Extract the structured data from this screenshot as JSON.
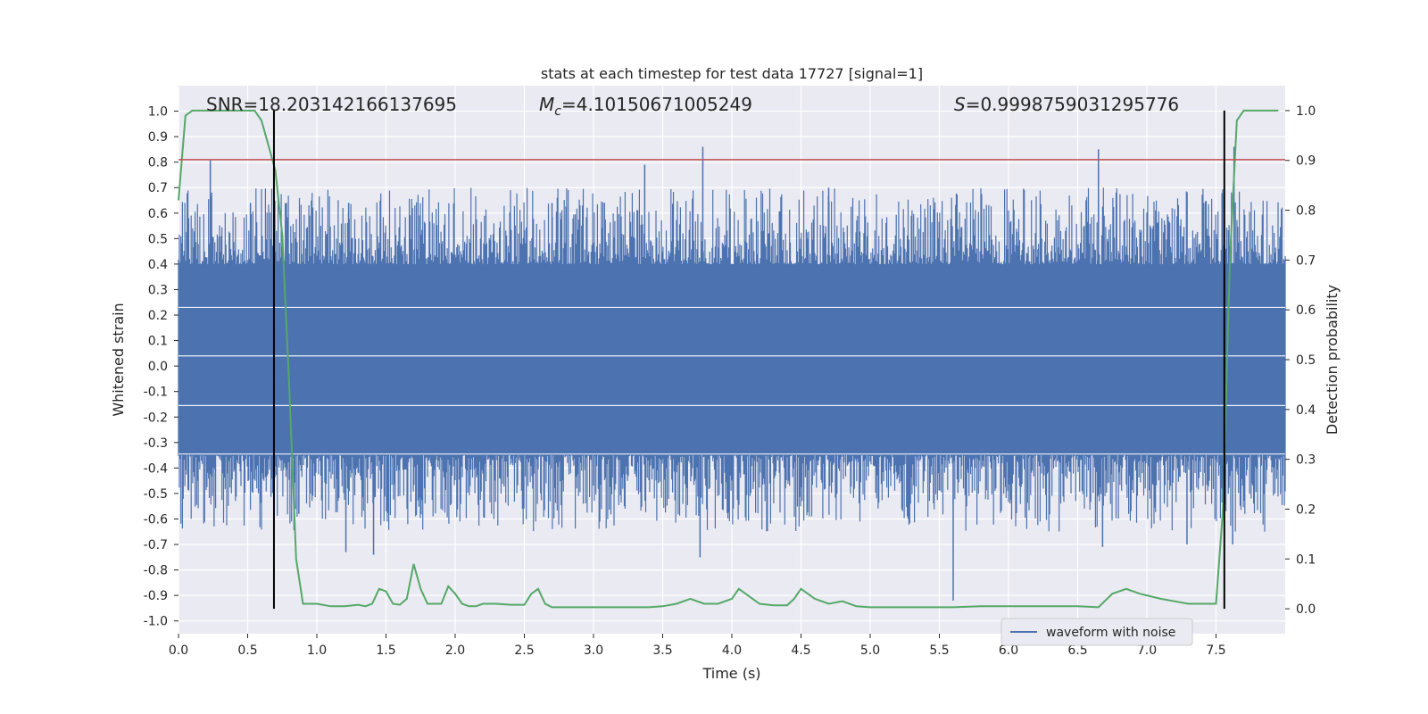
{
  "chart_data": {
    "type": "line",
    "title": "stats at each timestep for test data 17727 [signal=1]",
    "xlabel": "Time (s)",
    "ylabel": "Whitened strain",
    "y2label": "Detection probability",
    "xlim": [
      0.0,
      8.0
    ],
    "ylim": [
      -1.05,
      1.1
    ],
    "y2lim": [
      -0.05,
      1.05
    ],
    "grid": true,
    "legend_position": "lower-right",
    "x_ticks": [
      "0.0",
      "0.5",
      "1.0",
      "1.5",
      "2.0",
      "2.5",
      "3.0",
      "3.5",
      "4.0",
      "4.5",
      "5.0",
      "5.5",
      "6.0",
      "6.5",
      "7.0",
      "7.5"
    ],
    "y_ticks": [
      "1.0",
      "0.9",
      "0.8",
      "0.7",
      "0.6",
      "0.5",
      "0.4",
      "0.3",
      "0.2",
      "0.1",
      "0.0",
      "-0.1",
      "-0.2",
      "-0.3",
      "-0.4",
      "-0.5",
      "-0.6",
      "-0.7",
      "-0.8",
      "-0.9",
      "-1.0"
    ],
    "y2_ticks": [
      "1.0",
      "0.9",
      "0.8",
      "0.7",
      "0.6",
      "0.5",
      "0.4",
      "0.3",
      "0.2",
      "0.1",
      "0.0"
    ],
    "annotations": {
      "snr": "SNR=18.203142166137695",
      "mc_symbol": "M",
      "mc_sub": "c",
      "mc_value": "=4.10150671005249",
      "s_symbol": "S",
      "s_value": "=0.9998759031295776"
    },
    "threshold_line": {
      "axis": "y",
      "value": 0.81,
      "color": "#c44e52"
    },
    "vertical_lines": [
      0.69,
      7.56
    ],
    "colors": {
      "waveform": "#4c72b0",
      "probability": "#55a868",
      "threshold": "#c44e52",
      "vlines": "#000000",
      "background": "#eaeaf2"
    },
    "series": [
      {
        "name": "waveform with noise",
        "kind": "noise-band",
        "axis": "left",
        "color": "#4c72b0",
        "core_range": [
          -0.35,
          0.4
        ],
        "peaks": [
          {
            "x": 0.23,
            "y": 0.81
          },
          {
            "x": 0.52,
            "y": 0.64
          },
          {
            "x": 0.78,
            "y": 0.64
          },
          {
            "x": 1.23,
            "y": 0.64
          },
          {
            "x": 2.7,
            "y": 0.64
          },
          {
            "x": 3.37,
            "y": 0.79
          },
          {
            "x": 3.79,
            "y": 0.86
          },
          {
            "x": 4.7,
            "y": 0.7
          },
          {
            "x": 6.65,
            "y": 0.85
          },
          {
            "x": 7.63,
            "y": 0.86
          },
          {
            "x": 0.87,
            "y": -0.58
          },
          {
            "x": 1.21,
            "y": -0.73
          },
          {
            "x": 1.41,
            "y": -0.74
          },
          {
            "x": 3.77,
            "y": -0.75
          },
          {
            "x": 5.6,
            "y": -0.92
          },
          {
            "x": 6.68,
            "y": -0.71
          },
          {
            "x": 7.29,
            "y": -0.7
          },
          {
            "x": 7.62,
            "y": -0.7
          }
        ]
      },
      {
        "name": "detection probability",
        "axis": "right",
        "color": "#55a868",
        "x": [
          0.0,
          0.05,
          0.1,
          0.2,
          0.3,
          0.4,
          0.55,
          0.6,
          0.65,
          0.7,
          0.75,
          0.8,
          0.85,
          0.9,
          0.95,
          1.0,
          1.1,
          1.2,
          1.3,
          1.35,
          1.4,
          1.45,
          1.5,
          1.55,
          1.6,
          1.65,
          1.7,
          1.75,
          1.8,
          1.85,
          1.9,
          1.95,
          2.0,
          2.05,
          2.1,
          2.15,
          2.2,
          2.3,
          2.4,
          2.5,
          2.55,
          2.6,
          2.65,
          2.7,
          2.8,
          3.0,
          3.2,
          3.4,
          3.5,
          3.6,
          3.7,
          3.8,
          3.9,
          4.0,
          4.05,
          4.1,
          4.2,
          4.3,
          4.4,
          4.45,
          4.5,
          4.6,
          4.7,
          4.8,
          4.9,
          5.0,
          5.2,
          5.4,
          5.6,
          5.8,
          6.0,
          6.2,
          6.4,
          6.5,
          6.65,
          6.75,
          6.85,
          6.95,
          7.1,
          7.2,
          7.3,
          7.4,
          7.5,
          7.55,
          7.6,
          7.65,
          7.7,
          7.8,
          7.95
        ],
        "values": [
          0.82,
          0.99,
          1.0,
          1.0,
          1.0,
          1.0,
          1.0,
          0.98,
          0.93,
          0.88,
          0.75,
          0.45,
          0.1,
          0.01,
          0.01,
          0.01,
          0.005,
          0.005,
          0.008,
          0.005,
          0.01,
          0.04,
          0.035,
          0.01,
          0.008,
          0.02,
          0.09,
          0.04,
          0.01,
          0.01,
          0.01,
          0.045,
          0.03,
          0.01,
          0.005,
          0.005,
          0.01,
          0.01,
          0.008,
          0.008,
          0.03,
          0.04,
          0.01,
          0.003,
          0.003,
          0.003,
          0.003,
          0.003,
          0.005,
          0.01,
          0.02,
          0.01,
          0.01,
          0.02,
          0.04,
          0.03,
          0.01,
          0.007,
          0.007,
          0.02,
          0.04,
          0.02,
          0.01,
          0.015,
          0.005,
          0.003,
          0.003,
          0.003,
          0.003,
          0.005,
          0.005,
          0.005,
          0.005,
          0.005,
          0.003,
          0.03,
          0.04,
          0.03,
          0.02,
          0.015,
          0.01,
          0.01,
          0.01,
          0.2,
          0.7,
          0.98,
          1.0,
          1.0,
          1.0
        ]
      }
    ]
  }
}
